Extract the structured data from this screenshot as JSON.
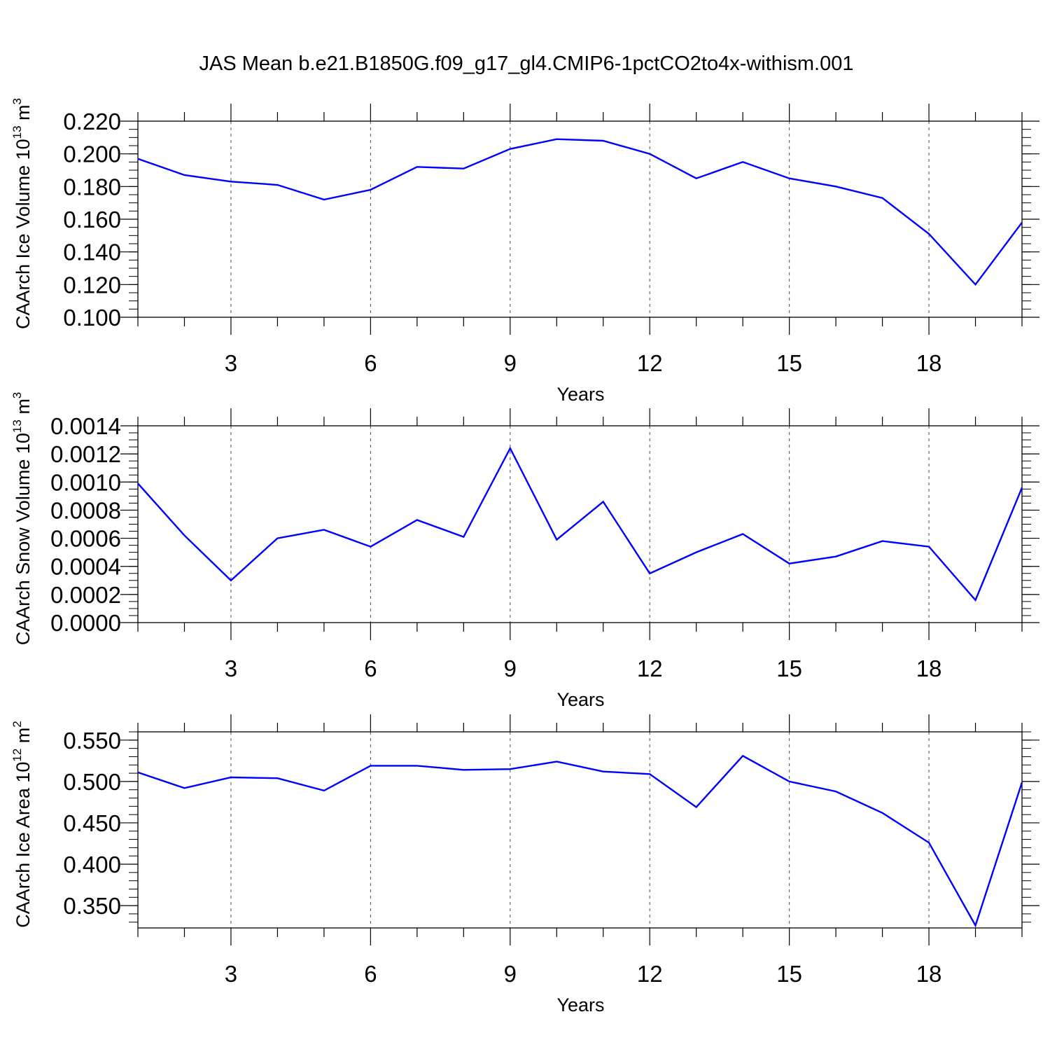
{
  "title": "JAS Mean b.e21.B1850G.f09_g17_gl4.CMIP6-1pctCO2to4x-withism.001",
  "line_color": "#0000ff",
  "chart_data": [
    {
      "type": "line",
      "name": "ice-volume",
      "ylabel": {
        "base": "CAArch Ice Volume 10",
        "exp": "13",
        "unit": " m",
        "unit_exp": "3"
      },
      "xlabel": "Years",
      "x": [
        1,
        2,
        3,
        4,
        5,
        6,
        7,
        8,
        9,
        10,
        11,
        12,
        13,
        14,
        15,
        16,
        17,
        18,
        19,
        20
      ],
      "values": [
        0.197,
        0.187,
        0.183,
        0.181,
        0.172,
        0.178,
        0.192,
        0.191,
        0.203,
        0.209,
        0.208,
        0.2,
        0.185,
        0.195,
        0.185,
        0.18,
        0.173,
        0.151,
        0.12,
        0.158
      ],
      "xlim": [
        1,
        20
      ],
      "ylim": [
        0.1,
        0.22
      ],
      "xticks": [
        3,
        6,
        9,
        12,
        15,
        18
      ],
      "xtick_labels": [
        "3",
        "6",
        "9",
        "12",
        "15",
        "18"
      ],
      "yticks": [
        0.1,
        0.12,
        0.14,
        0.16,
        0.18,
        0.2,
        0.22
      ],
      "ytick_labels": [
        "0.100",
        "0.120",
        "0.140",
        "0.160",
        "0.180",
        "0.200",
        "0.220"
      ],
      "y_minor_step": 0.005,
      "grid": "vertical dashed at major x ticks"
    },
    {
      "type": "line",
      "name": "snow-volume",
      "ylabel": {
        "base": "CAArch Snow Volume 10",
        "exp": "13",
        "unit": " m",
        "unit_exp": "3"
      },
      "xlabel": "Years",
      "x": [
        1,
        2,
        3,
        4,
        5,
        6,
        7,
        8,
        9,
        10,
        11,
        12,
        13,
        14,
        15,
        16,
        17,
        18,
        19,
        20
      ],
      "values": [
        0.00099,
        0.00062,
        0.0003,
        0.0006,
        0.00066,
        0.00054,
        0.00073,
        0.00061,
        0.00124,
        0.00059,
        0.00086,
        0.00035,
        0.0005,
        0.00063,
        0.00042,
        0.00047,
        0.00058,
        0.00054,
        0.00016,
        0.00096
      ],
      "xlim": [
        1,
        20
      ],
      "ylim": [
        0,
        0.0014
      ],
      "xticks": [
        3,
        6,
        9,
        12,
        15,
        18
      ],
      "xtick_labels": [
        "3",
        "6",
        "9",
        "12",
        "15",
        "18"
      ],
      "yticks": [
        0,
        0.0002,
        0.0004,
        0.0006,
        0.0008,
        0.001,
        0.0012,
        0.0014
      ],
      "ytick_labels": [
        "0.0000",
        "0.0002",
        "0.0004",
        "0.0006",
        "0.0008",
        "0.0010",
        "0.0012",
        "0.0014"
      ],
      "y_minor_step": 5e-05,
      "grid": "vertical dashed at major x ticks"
    },
    {
      "type": "line",
      "name": "ice-area",
      "ylabel": {
        "base": "CAArch Ice Area 10",
        "exp": "12",
        "unit": " m",
        "unit_exp": "2"
      },
      "xlabel": "Years",
      "x": [
        1,
        2,
        3,
        4,
        5,
        6,
        7,
        8,
        9,
        10,
        11,
        12,
        13,
        14,
        15,
        16,
        17,
        18,
        19,
        20
      ],
      "values": [
        0.511,
        0.492,
        0.505,
        0.504,
        0.489,
        0.519,
        0.519,
        0.514,
        0.515,
        0.524,
        0.512,
        0.509,
        0.469,
        0.531,
        0.5,
        0.488,
        0.462,
        0.426,
        0.326,
        0.499
      ],
      "xlim": [
        1,
        20
      ],
      "ylim": [
        0.323,
        0.56
      ],
      "xticks": [
        3,
        6,
        9,
        12,
        15,
        18
      ],
      "xtick_labels": [
        "3",
        "6",
        "9",
        "12",
        "15",
        "18"
      ],
      "yticks": [
        0.35,
        0.4,
        0.45,
        0.5,
        0.55
      ],
      "ytick_labels": [
        "0.350",
        "0.400",
        "0.450",
        "0.500",
        "0.550"
      ],
      "y_minor_step": 0.01,
      "grid": "vertical dashed at major x ticks"
    }
  ]
}
